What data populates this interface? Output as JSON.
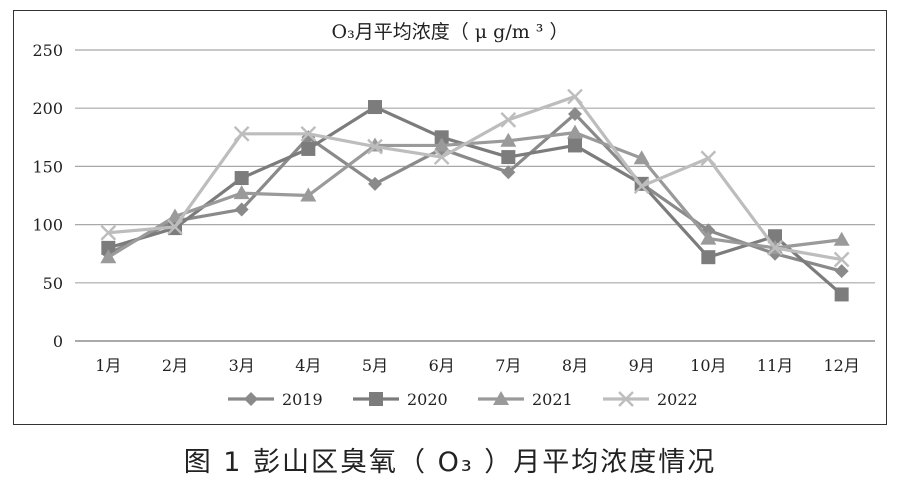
{
  "chart_data": {
    "type": "line",
    "title": "O₃月平均浓度（ μ g/m ³ ）",
    "categories": [
      "1月",
      "2月",
      "3月",
      "4月",
      "5月",
      "6月",
      "7月",
      "8月",
      "9月",
      "10月",
      "11月",
      "12月"
    ],
    "ylim": [
      0,
      250
    ],
    "yticks": [
      "0",
      "50",
      "100",
      "150",
      "200",
      "250"
    ],
    "grid": true,
    "legend_position": "bottom",
    "series": [
      {
        "name": "2019",
        "marker": "diamond",
        "color": "#8a8a8a",
        "values": [
          75,
          103,
          113,
          175,
          135,
          165,
          145,
          195,
          135,
          95,
          75,
          60
        ]
      },
      {
        "name": "2020",
        "marker": "square",
        "color": "#7c7c7c",
        "values": [
          80,
          97,
          140,
          165,
          201,
          175,
          158,
          168,
          135,
          72,
          90,
          40
        ]
      },
      {
        "name": "2021",
        "marker": "triangle",
        "color": "#9a9a9a",
        "values": [
          72,
          107,
          127,
          125,
          168,
          168,
          172,
          179,
          157,
          88,
          80,
          87
        ]
      },
      {
        "name": "2022",
        "marker": "x",
        "color": "#bdbdbd",
        "values": [
          93,
          98,
          178,
          178,
          167,
          158,
          190,
          210,
          133,
          157,
          80,
          70
        ]
      }
    ]
  },
  "caption": "图 1   彭山区臭氧（ O₃ ）月平均浓度情况"
}
